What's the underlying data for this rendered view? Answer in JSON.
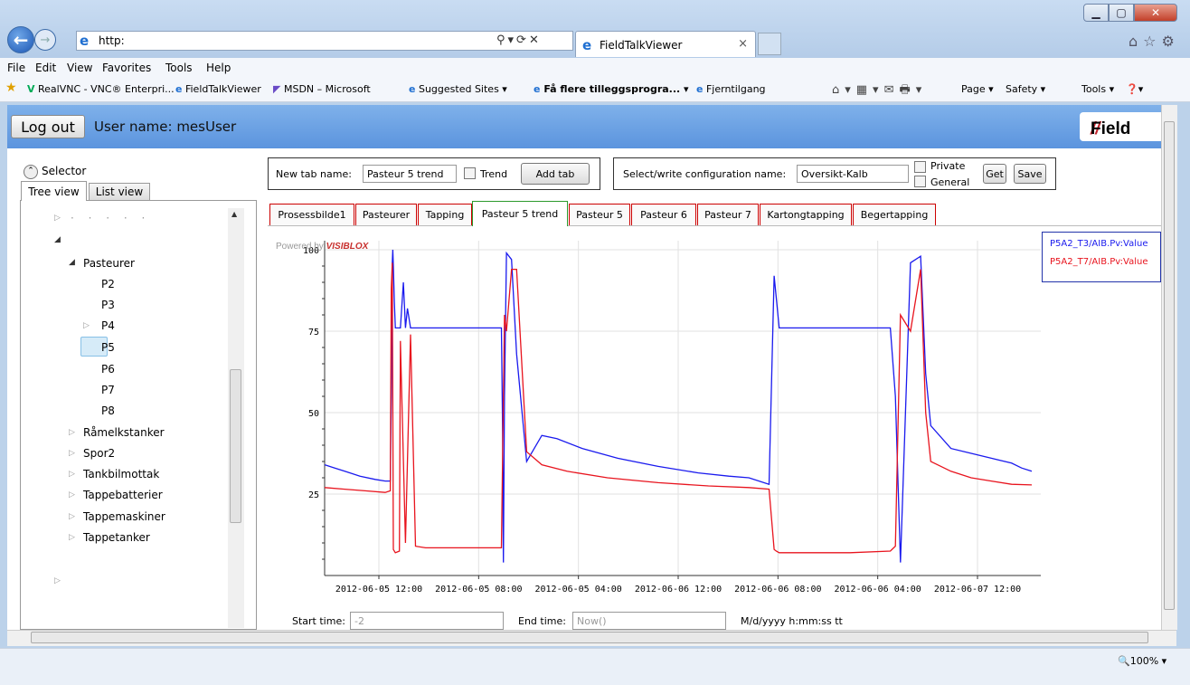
{
  "browser": {
    "address_text": "http:",
    "tab_title": "FieldTalkViewer",
    "tab_close": "×",
    "menu": [
      "File",
      "Edit",
      "View",
      "Favorites",
      "Tools",
      "Help"
    ],
    "favorites": [
      {
        "label": "RealVNC - VNC® Enterpri...",
        "icon": "vnc-icon"
      },
      {
        "label": "FieldTalkViewer",
        "icon": "ie-page-icon"
      },
      {
        "label": "MSDN – Microsoft",
        "icon": "msdn-icon"
      },
      {
        "label": "Suggested Sites ▾",
        "icon": "ie-page-icon"
      },
      {
        "label": "Få flere tilleggsprogra... ▾",
        "icon": "ie-page-icon"
      },
      {
        "label": "Fjerntilgang",
        "icon": "ie-page-icon"
      }
    ],
    "commands": {
      "page": "Page ▾",
      "safety": "Safety ▾",
      "tools": "Tools ▾",
      "help": "❓▾"
    },
    "zoom": "🔍100%  ▾"
  },
  "header": {
    "logout_label": "Log out",
    "username_text": "User name: mesUser",
    "brand_text": "Field"
  },
  "selector": {
    "label": "Selector",
    "tabs": {
      "tree": "Tree view",
      "list": "List view"
    },
    "tree": {
      "pasteurer": "Pasteurer",
      "p2": "P2",
      "p3": "P3",
      "p4": "P4",
      "p5": "P5",
      "p6": "P6",
      "p7": "P7",
      "p8": "P8",
      "ramelk": "Råmelkstanker",
      "spor2": "Spor2",
      "tankbil": "Tankbilmottak",
      "tappebat": "Tappebatterier",
      "tappemask": "Tappemaskiner",
      "tappetank": "Tappetanker"
    }
  },
  "newtab": {
    "label": "New tab name:",
    "value": "Pasteur 5 trend",
    "trend_label": "Trend",
    "add_label": "Add tab"
  },
  "config": {
    "label": "Select/write configuration name:",
    "value": "Oversikt-Kalb",
    "private_label": "Private",
    "general_label": "General",
    "get_label": "Get",
    "save_label": "Save"
  },
  "tabs": [
    "Prosessbilde1",
    "Pasteurer",
    "Tapping",
    "Pasteur 5 trend",
    "Pasteur 5",
    "Pasteur 6",
    "Pasteur 7",
    "Kartongtapping",
    "Begertapping"
  ],
  "active_tab": "Pasteur 5 trend",
  "chart_watermark": {
    "prefix": "Powered by ",
    "brand": "VISIBLOX"
  },
  "chart_data": {
    "type": "line",
    "ylim": [
      0,
      100
    ],
    "yticks": [
      25,
      50,
      75,
      100
    ],
    "xticks": [
      "2012-06-05 12:00",
      "2012-06-05 08:00",
      "2012-06-05 04:00",
      "2012-06-06 12:00",
      "2012-06-06 08:00",
      "2012-06-06 04:00",
      "2012-06-07 12:00"
    ],
    "grid": true,
    "legend_position": "right",
    "series": [
      {
        "name": "P5A2_T3/AIB.Pv:Value",
        "color": "#1a1aee",
        "x": [
          0,
          10,
          20,
          35,
          50,
          60,
          65,
          66,
          67,
          67.5,
          68,
          69,
          70,
          75,
          78,
          80,
          82,
          85,
          90,
          100,
          120,
          140,
          150,
          160,
          170,
          175,
          176,
          177,
          178,
          180,
          185,
          190,
          200,
          215,
          230,
          255,
          290,
          330,
          370,
          400,
          420,
          440,
          445,
          450,
          452,
          455,
          456,
          458,
          460,
          480,
          500,
          550,
          560,
          565,
          570,
          580,
          590,
          595,
          600,
          620,
          640,
          660,
          680,
          690,
          700
        ],
        "y": [
          34,
          33,
          32,
          30.5,
          29.5,
          29,
          29,
          55,
          96,
          100,
          95,
          84,
          76,
          76,
          90,
          76,
          82,
          76,
          76,
          76,
          76,
          76,
          76,
          76,
          76,
          76,
          50,
          4,
          55,
          99,
          97,
          68,
          35,
          43,
          42,
          39,
          36,
          33.5,
          31.5,
          30.5,
          30,
          28,
          92,
          76,
          76,
          76,
          76,
          76,
          76,
          76,
          76,
          76,
          76,
          55,
          4,
          96,
          98,
          62,
          46,
          39,
          37.5,
          36,
          34.5,
          33,
          32
        ]
      },
      {
        "name": "P5A2_T7/AIB.Pv:Value",
        "color": "#e8141e",
        "x": [
          0,
          20,
          40,
          60,
          65,
          66,
          67,
          68,
          70,
          74,
          75,
          80,
          85,
          90,
          100,
          120,
          140,
          160,
          170,
          175,
          178,
          180,
          185,
          190,
          200,
          215,
          240,
          280,
          330,
          380,
          420,
          440,
          445,
          447,
          450,
          480,
          520,
          560,
          565,
          570,
          580,
          590,
          595,
          600,
          620,
          640,
          660,
          680,
          700
        ],
        "y": [
          27,
          26.5,
          26,
          25.5,
          26,
          88,
          96,
          8,
          7,
          7.5,
          72,
          10,
          74,
          9,
          8.5,
          8.5,
          8.5,
          8.5,
          8.5,
          8.5,
          80,
          75,
          94,
          94,
          38,
          34,
          32,
          30,
          28.5,
          27.5,
          27,
          26.5,
          8,
          7.5,
          7,
          7,
          7,
          7.5,
          9,
          80,
          75,
          94,
          50,
          35,
          32,
          30,
          29,
          28,
          27.8
        ]
      }
    ]
  },
  "time": {
    "start_label": "Start time:",
    "start_value": "-2",
    "end_label": "End time:",
    "end_value": "Now()",
    "format_hint": "M/d/yyyy h:mm:ss tt"
  }
}
